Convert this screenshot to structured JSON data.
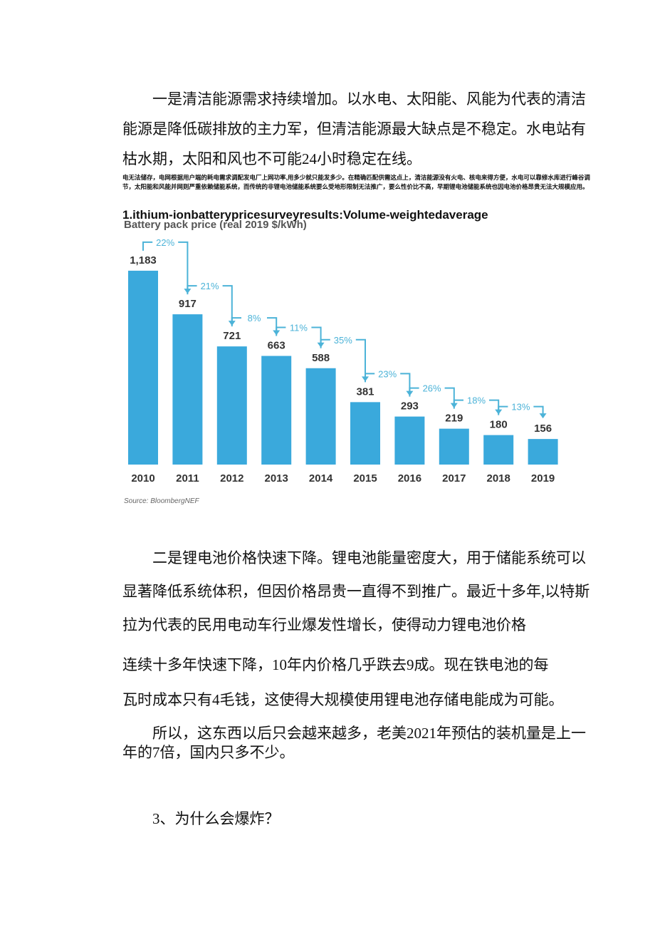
{
  "paragraphs": [
    "一是清洁能源需求持续增加。以水电、太阳能、风能为代表的清洁能源是降低碳排放的主力军，但清洁能源最大缺点是不稳定。水电站有枯水期，太阳和风也不可能24小时稳定在线。",
    "二是锂电池价格快速下降。锂电池能量密度大，用于储能系统可以显著降低系统体积，但因价格昂贵一直得不到推广。最近十多年,以特斯拉为代表的民用电动车行业爆发性增长，使得动力锂电池价格",
    "连续十多年快速下降，10年内价格几乎跌去9成。现在铁电池的每",
    "瓦时成本只有4毛钱，这使得大规模使用锂电池存储电能成为可能。",
    "所以，这东西以后只会越来越多，老美2021年预估的装机量是上一年的7倍，国内只多不少。",
    "3、为什么会爆炸？"
  ],
  "note": "电无法储存，电网根据用户端的耗电需求调配发电厂上网功率,用多少就只能发多少。在精确匹配供需这点上，清洁能源没有火电、核电来得方便，水电可以靠修水库进行峰谷调节，太阳能和风能并网则严重依赖储能系统，而传统的非锂电池储能系统要么受地形限制无法推广，要么性价比不高，早期锂电池储能系统也因电池价格昂贵无法大规模应用。",
  "chart_heading": "1.ithium-ionbatterypricesurveyresults:Volume-weightedaverage",
  "chart_data": {
    "type": "bar",
    "subtitle": "Battery pack price (real 2019 $/kWh)",
    "categories": [
      "2010",
      "2011",
      "2012",
      "2013",
      "2014",
      "2015",
      "2016",
      "2017",
      "2018",
      "2019"
    ],
    "values": [
      1183,
      917,
      721,
      663,
      588,
      381,
      293,
      219,
      180,
      156
    ],
    "value_labels": [
      "1,183",
      "917",
      "721",
      "663",
      "588",
      "381",
      "293",
      "219",
      "180",
      "156"
    ],
    "changes": [
      "22%",
      "21%",
      "8%",
      "11%",
      "35%",
      "23%",
      "26%",
      "18%",
      "13%"
    ],
    "color": "#3aa9dc",
    "annotation_color": "#4cb3d8",
    "source": "Source: BloombergNEF"
  }
}
